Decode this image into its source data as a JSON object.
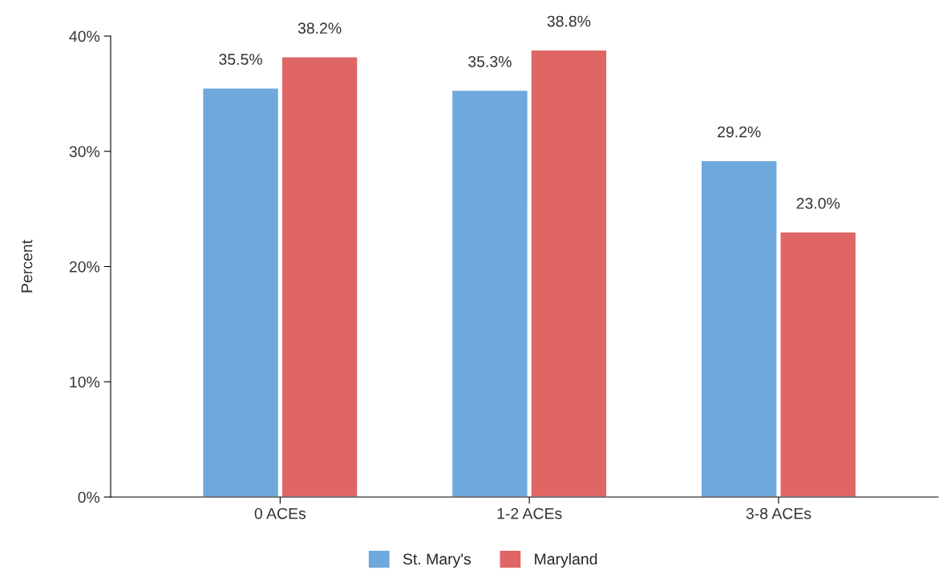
{
  "chart_data": {
    "type": "bar",
    "ylabel": "Percent",
    "categories": [
      "0 ACEs",
      "1-2 ACEs",
      "3-8 ACEs"
    ],
    "series": [
      {
        "name": "St. Mary's",
        "color": "#6fa8dc",
        "values": [
          35.5,
          35.3,
          29.2
        ],
        "value_labels": [
          "35.5%",
          "35.3%",
          "29.2%"
        ]
      },
      {
        "name": "Maryland",
        "color": "#e06666",
        "values": [
          38.2,
          38.8,
          23.0
        ],
        "value_labels": [
          "38.2%",
          "38.8%",
          "23.0%"
        ]
      }
    ],
    "ylim": [
      0,
      40
    ],
    "yticks": [
      {
        "value": 0,
        "label": "0%"
      },
      {
        "value": 10,
        "label": "10%"
      },
      {
        "value": 20,
        "label": "20%"
      },
      {
        "value": 30,
        "label": "30%"
      },
      {
        "value": 40,
        "label": "40%"
      }
    ],
    "grid": false,
    "legend": "bottom"
  }
}
